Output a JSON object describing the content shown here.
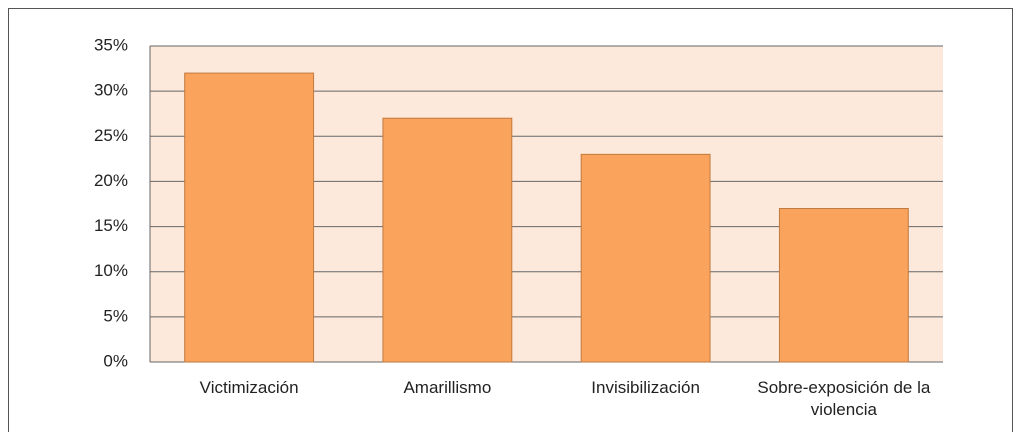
{
  "chart_data": {
    "type": "bar",
    "categories": [
      "Victimización",
      "Amarillismo",
      "Invisibilización",
      "Sobre-exposición de la violencia"
    ],
    "values": [
      32,
      27,
      23,
      17
    ],
    "color": "#f9a35d",
    "ylim": [
      0,
      35
    ],
    "yticks": [
      {
        "value": 0,
        "label": "0%"
      },
      {
        "value": 5,
        "label": "5%"
      },
      {
        "value": 10,
        "label": "10%"
      },
      {
        "value": 15,
        "label": "15%"
      },
      {
        "value": 20,
        "label": "20%"
      },
      {
        "value": 25,
        "label": "25%"
      },
      {
        "value": 30,
        "label": "30%"
      },
      {
        "value": 35,
        "label": "35%"
      }
    ],
    "grid": true
  }
}
